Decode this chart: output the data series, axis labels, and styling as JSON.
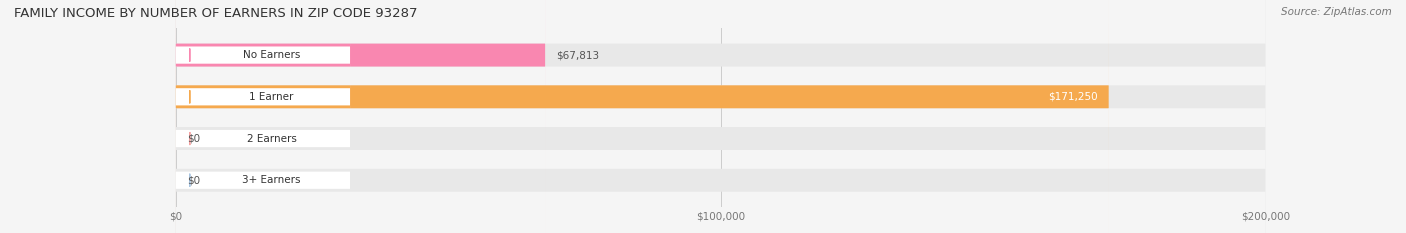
{
  "title": "FAMILY INCOME BY NUMBER OF EARNERS IN ZIP CODE 93287",
  "source": "Source: ZipAtlas.com",
  "categories": [
    "No Earners",
    "1 Earner",
    "2 Earners",
    "3+ Earners"
  ],
  "values": [
    67813,
    171250,
    0,
    0
  ],
  "bar_colors": [
    "#F987B0",
    "#F5A94E",
    "#F4A0A0",
    "#A8C4E0"
  ],
  "label_colors": [
    "#555555",
    "#555555",
    "#555555",
    "#555555"
  ],
  "value_labels": [
    "$67,813",
    "$171,250",
    "$0",
    "$0"
  ],
  "value_label_inside": [
    false,
    true,
    false,
    false
  ],
  "xlim": [
    0,
    200000
  ],
  "xtick_values": [
    0,
    100000,
    200000
  ],
  "xtick_labels": [
    "$0",
    "$100,000",
    "$200,000"
  ],
  "background_color": "#f5f5f5",
  "bar_background_color": "#e8e8e8",
  "bar_height": 0.55,
  "figsize": [
    14.06,
    2.33
  ],
  "dpi": 100
}
